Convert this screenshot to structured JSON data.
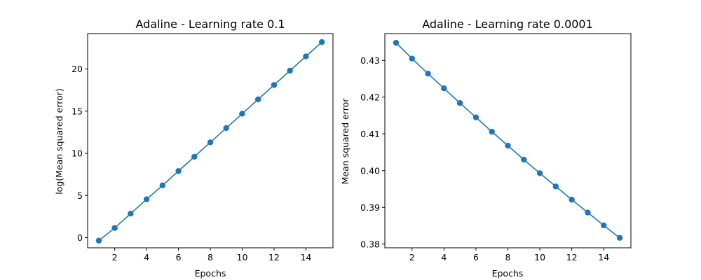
{
  "chart_data": [
    {
      "type": "line",
      "title": "Adaline - Learning rate 0.1",
      "xlabel": "Epochs",
      "ylabel": "log(Mean squared error)",
      "xlim": [
        0.3,
        15.7
      ],
      "ylim": [
        -1.2,
        24.2
      ],
      "xticks": [
        2,
        4,
        6,
        8,
        10,
        12,
        14
      ],
      "yticks": [
        0,
        5,
        10,
        15,
        20
      ],
      "grid": false,
      "color": "#1f77b4",
      "marker": "circle",
      "x": [
        1,
        2,
        3,
        4,
        5,
        6,
        7,
        8,
        9,
        10,
        11,
        12,
        13,
        14,
        15
      ],
      "y": [
        -0.35,
        1.15,
        2.85,
        4.55,
        6.2,
        7.9,
        9.6,
        11.3,
        13.0,
        14.7,
        16.4,
        18.1,
        19.8,
        21.5,
        23.2
      ]
    },
    {
      "type": "line",
      "title": "Adaline - Learning rate 0.0001",
      "xlabel": "Epochs",
      "ylabel": "Mean squared error",
      "xlim": [
        0.3,
        15.7
      ],
      "ylim": [
        0.379,
        0.4373
      ],
      "xticks": [
        2,
        4,
        6,
        8,
        10,
        12,
        14
      ],
      "yticks": [
        0.38,
        0.39,
        0.4,
        0.41,
        0.42,
        0.43
      ],
      "ytick_labels": [
        "0.38",
        "0.39",
        "0.40",
        "0.41",
        "0.42",
        "0.43"
      ],
      "grid": false,
      "color": "#1f77b4",
      "marker": "circle",
      "x": [
        1,
        2,
        3,
        4,
        5,
        6,
        7,
        8,
        9,
        10,
        11,
        12,
        13,
        14,
        15
      ],
      "y": [
        0.4348,
        0.4305,
        0.4264,
        0.4224,
        0.4184,
        0.4145,
        0.4106,
        0.4068,
        0.403,
        0.3993,
        0.3957,
        0.3921,
        0.3886,
        0.3851,
        0.3817
      ]
    }
  ]
}
